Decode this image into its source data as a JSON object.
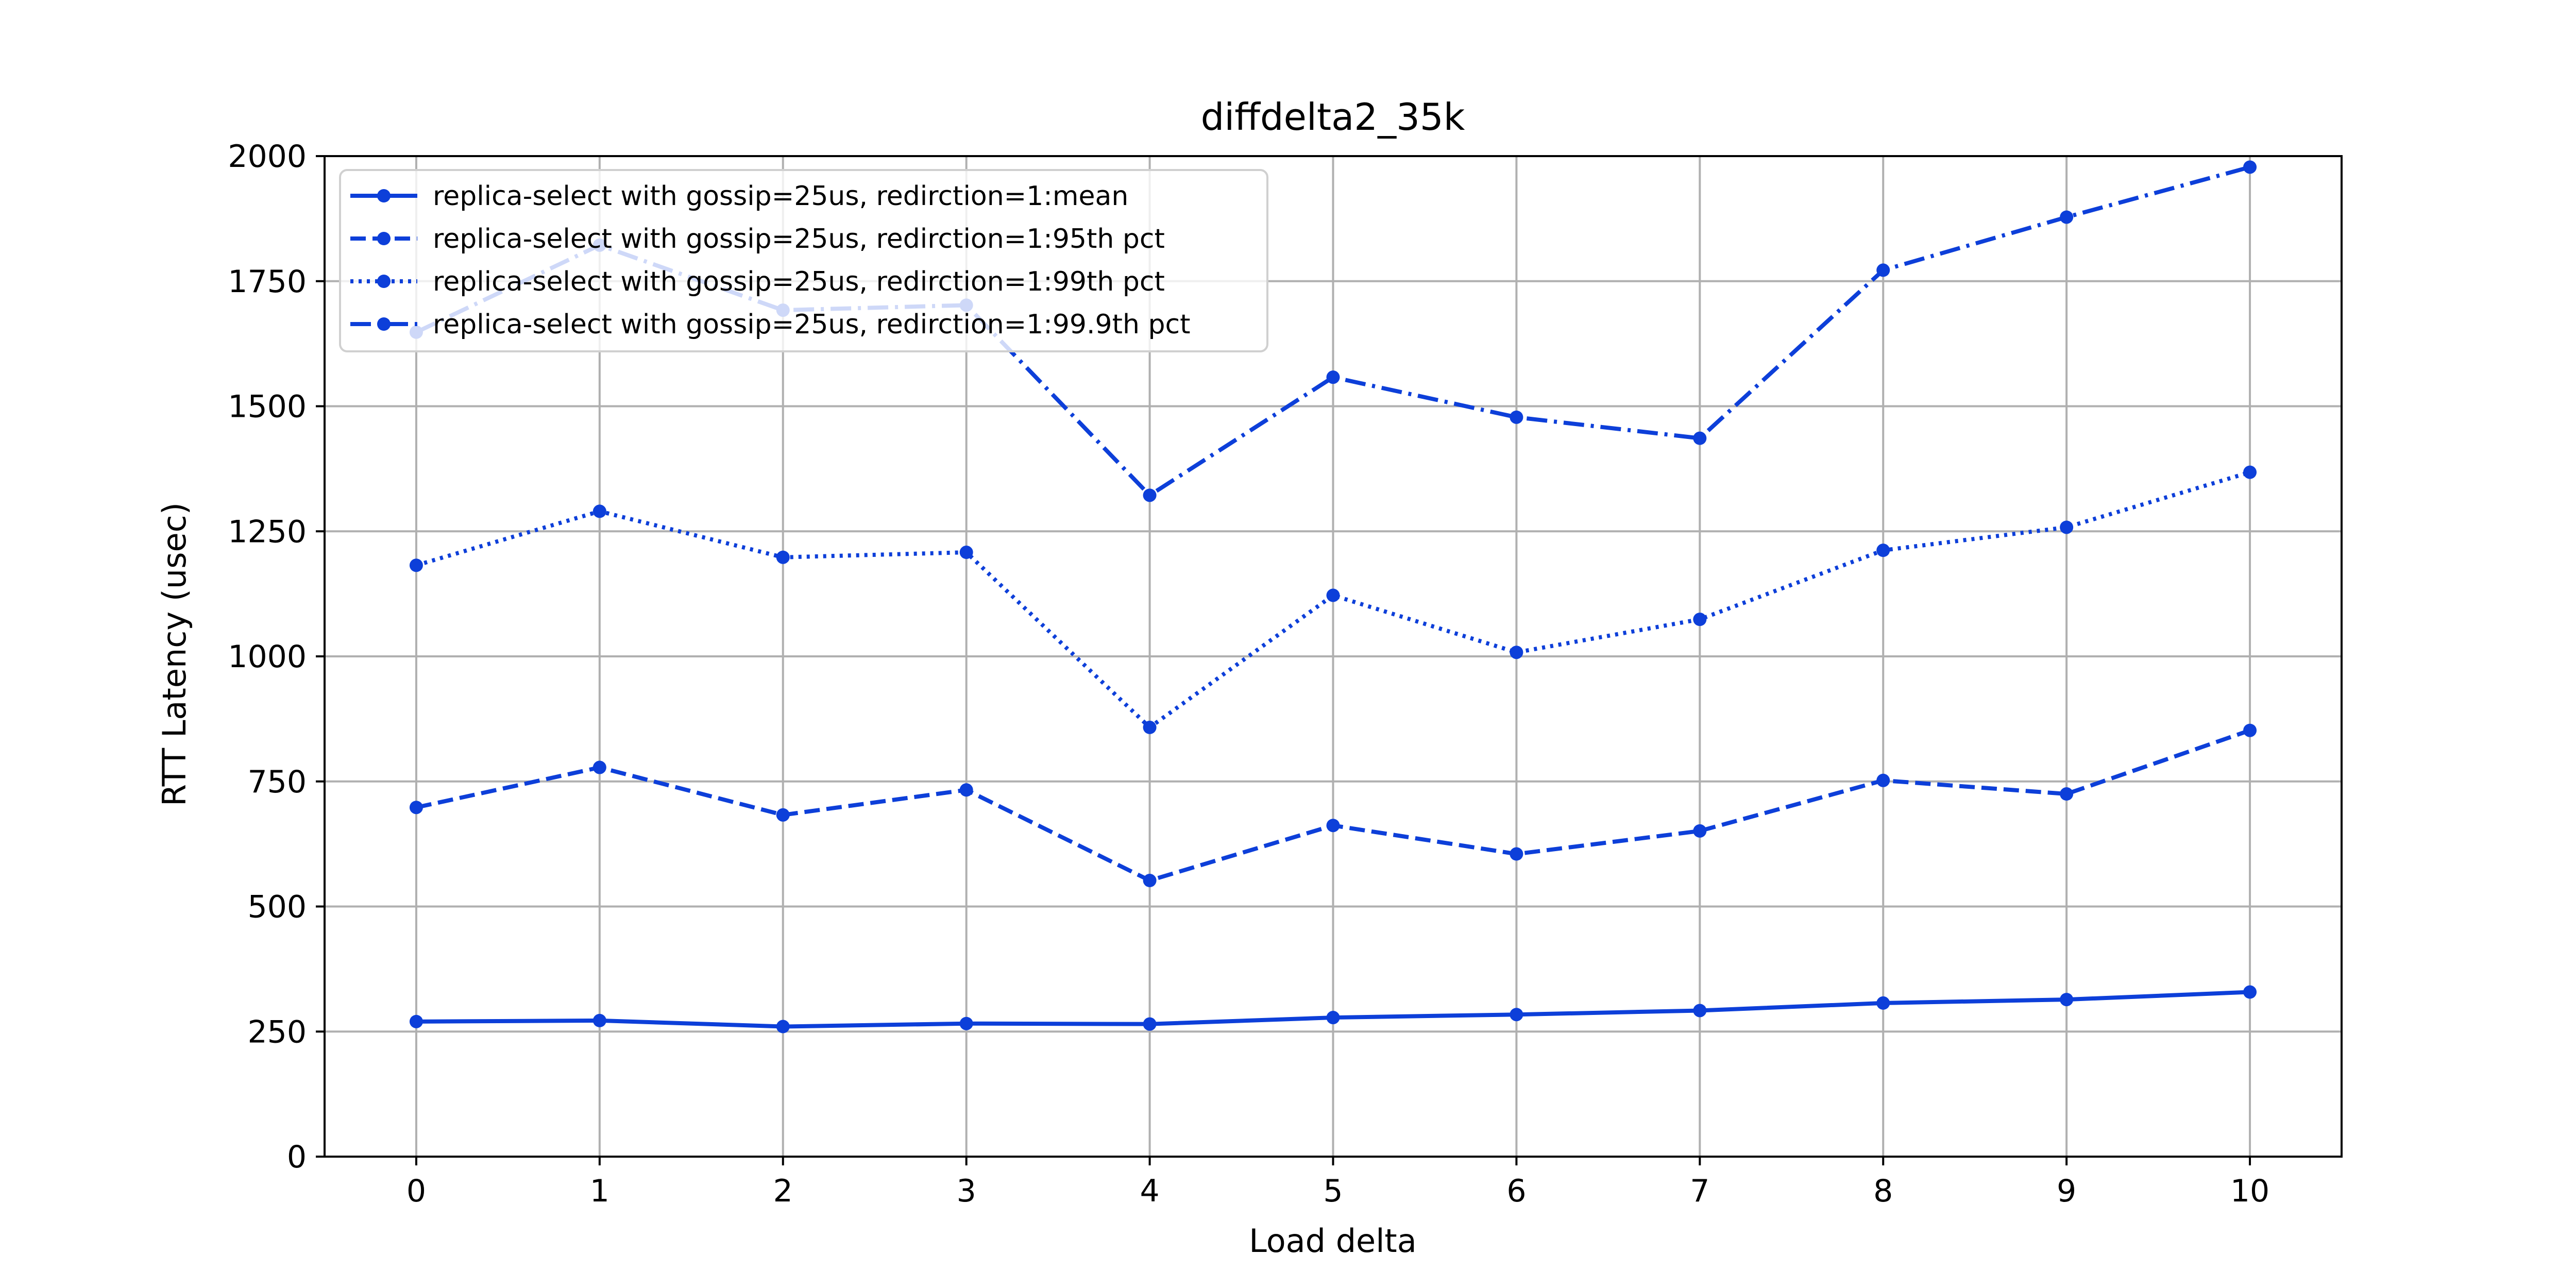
{
  "chart_data": {
    "type": "line",
    "title": "diffdelta2_35k",
    "xlabel": "Load delta",
    "ylabel": "RTT Latency (usec)",
    "x": [
      0,
      1,
      2,
      3,
      4,
      5,
      6,
      7,
      8,
      9,
      10
    ],
    "xticks": [
      "0",
      "1",
      "2",
      "3",
      "4",
      "5",
      "6",
      "7",
      "8",
      "9",
      "10"
    ],
    "xlim": [
      -0.5,
      10.5
    ],
    "ylim": [
      0,
      2000
    ],
    "yticks": [
      "0",
      "250",
      "500",
      "750",
      "1000",
      "1250",
      "1500",
      "1750",
      "2000"
    ],
    "grid": true,
    "legend_position": "top-left",
    "color": "#0d3fd9",
    "series": [
      {
        "name": "replica-select with gossip=25us, redirction=1:mean",
        "style": "solid",
        "values": [
          270,
          272,
          260,
          266,
          265,
          278,
          284,
          292,
          307,
          314,
          329
        ]
      },
      {
        "name": "replica-select with gossip=25us, redirction=1:95th pct",
        "style": "dashed",
        "values": [
          698,
          778,
          683,
          733,
          552,
          662,
          605,
          651,
          752,
          725,
          852
        ]
      },
      {
        "name": "replica-select with gossip=25us, redirction=1:99th pct",
        "style": "dotted",
        "values": [
          1182,
          1290,
          1198,
          1208,
          858,
          1122,
          1008,
          1074,
          1212,
          1258,
          1368
        ]
      },
      {
        "name": "replica-select with gossip=25us, redirction=1:99.9th pct",
        "style": "dashdot",
        "values": [
          1648,
          1822,
          1692,
          1702,
          1322,
          1558,
          1478,
          1436,
          1772,
          1878,
          1978
        ]
      }
    ]
  }
}
